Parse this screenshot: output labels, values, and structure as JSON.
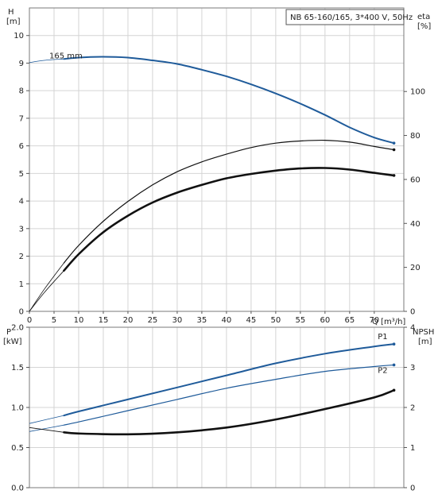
{
  "title": "NB 65-160/165, 3*400 V, 50Hz",
  "colors": {
    "blue": "#1f5b9a",
    "black": "#111111",
    "grid": "#d4d4d4"
  },
  "axis_titles": {
    "H": "H",
    "H_unit": "[m]",
    "eta": "eta",
    "eta_unit": "[%]",
    "Q": "Q [m³/h]",
    "P": "P",
    "P_unit": "[kW]",
    "NPSH": "NPSH",
    "NPSH_unit": "[m]"
  },
  "chart_data": [
    {
      "type": "line",
      "name": "top-panel",
      "xlim": [
        0,
        76
      ],
      "xticks": [
        0,
        5,
        10,
        15,
        20,
        25,
        30,
        35,
        40,
        45,
        50,
        55,
        60,
        65,
        70
      ],
      "ylim": [
        0,
        11
      ],
      "yticks": [
        0,
        1,
        2,
        3,
        4,
        5,
        6,
        7,
        8,
        9,
        10
      ],
      "y2lim": [
        0,
        138
      ],
      "y2ticks": [
        0,
        20,
        40,
        60,
        80,
        100
      ],
      "grid": true,
      "annotation": "165 mm",
      "series": [
        {
          "id": "H",
          "axis": "y",
          "color": "#1f5b9a",
          "width": 2,
          "x": [
            7,
            10,
            15,
            20,
            25,
            30,
            35,
            40,
            45,
            50,
            55,
            60,
            65,
            70,
            74
          ],
          "y": [
            9.15,
            9.2,
            9.23,
            9.2,
            9.1,
            8.97,
            8.76,
            8.52,
            8.23,
            7.9,
            7.53,
            7.12,
            6.67,
            6.3,
            6.1
          ],
          "ext_x": [
            0,
            3,
            7
          ],
          "ext_y": [
            9.02,
            9.1,
            9.15
          ]
        },
        {
          "id": "eta-thin",
          "axis": "y2",
          "color": "#111111",
          "width": 1.2,
          "x": [
            7,
            10,
            15,
            20,
            25,
            30,
            35,
            40,
            45,
            50,
            55,
            60,
            65,
            70,
            74
          ],
          "y": [
            22,
            30,
            41,
            50,
            57.5,
            63.5,
            68,
            71.5,
            74.5,
            76.5,
            77.5,
            77.8,
            77,
            75,
            73.5
          ],
          "ext_x": [
            0,
            3,
            7
          ],
          "ext_y": [
            0,
            10,
            22
          ]
        },
        {
          "id": "eta-thick",
          "axis": "y2",
          "color": "#111111",
          "width": 2.6,
          "x": [
            7,
            10,
            15,
            20,
            25,
            30,
            35,
            40,
            45,
            50,
            55,
            60,
            65,
            70,
            74
          ],
          "y": [
            18.5,
            26,
            36,
            43.5,
            49.5,
            54,
            57.5,
            60.5,
            62.5,
            64,
            65,
            65.2,
            64.5,
            63,
            61.8
          ],
          "ext_x": [
            0,
            3,
            7
          ],
          "ext_y": [
            0,
            8.5,
            18.5
          ]
        }
      ]
    },
    {
      "type": "line",
      "name": "bottom-panel",
      "xlim": [
        0,
        76
      ],
      "ylim": [
        0,
        2.0
      ],
      "yticks": [
        0.0,
        0.5,
        1.0,
        1.5,
        2.0
      ],
      "y2lim": [
        0,
        4
      ],
      "y2ticks": [
        0,
        1,
        2,
        3,
        4
      ],
      "grid": true,
      "series": [
        {
          "id": "P1",
          "name": "P1",
          "axis": "y",
          "color": "#1f5b9a",
          "width": 2,
          "x": [
            7,
            10,
            20,
            30,
            40,
            50,
            60,
            70,
            74
          ],
          "y": [
            0.9,
            0.95,
            1.1,
            1.25,
            1.4,
            1.55,
            1.67,
            1.76,
            1.79
          ],
          "ext_x": [
            0,
            7
          ],
          "ext_y": [
            0.8,
            0.9
          ]
        },
        {
          "id": "P2",
          "name": "P2",
          "axis": "y",
          "color": "#1f5b9a",
          "width": 1.2,
          "x": [
            7,
            10,
            20,
            30,
            40,
            50,
            60,
            70,
            74
          ],
          "y": [
            0.78,
            0.82,
            0.96,
            1.1,
            1.24,
            1.35,
            1.45,
            1.51,
            1.53
          ],
          "ext_x": [
            0,
            7
          ],
          "ext_y": [
            0.7,
            0.78
          ]
        },
        {
          "id": "NPSH",
          "axis": "y2",
          "color": "#111111",
          "width": 2.6,
          "x": [
            7,
            10,
            20,
            30,
            40,
            50,
            60,
            70,
            74
          ],
          "y": [
            1.38,
            1.35,
            1.33,
            1.38,
            1.5,
            1.7,
            1.96,
            2.25,
            2.43
          ],
          "ext_x": [
            0,
            7
          ],
          "ext_y": [
            1.5,
            1.38
          ]
        }
      ],
      "labels": [
        "P1",
        "P2"
      ]
    }
  ]
}
